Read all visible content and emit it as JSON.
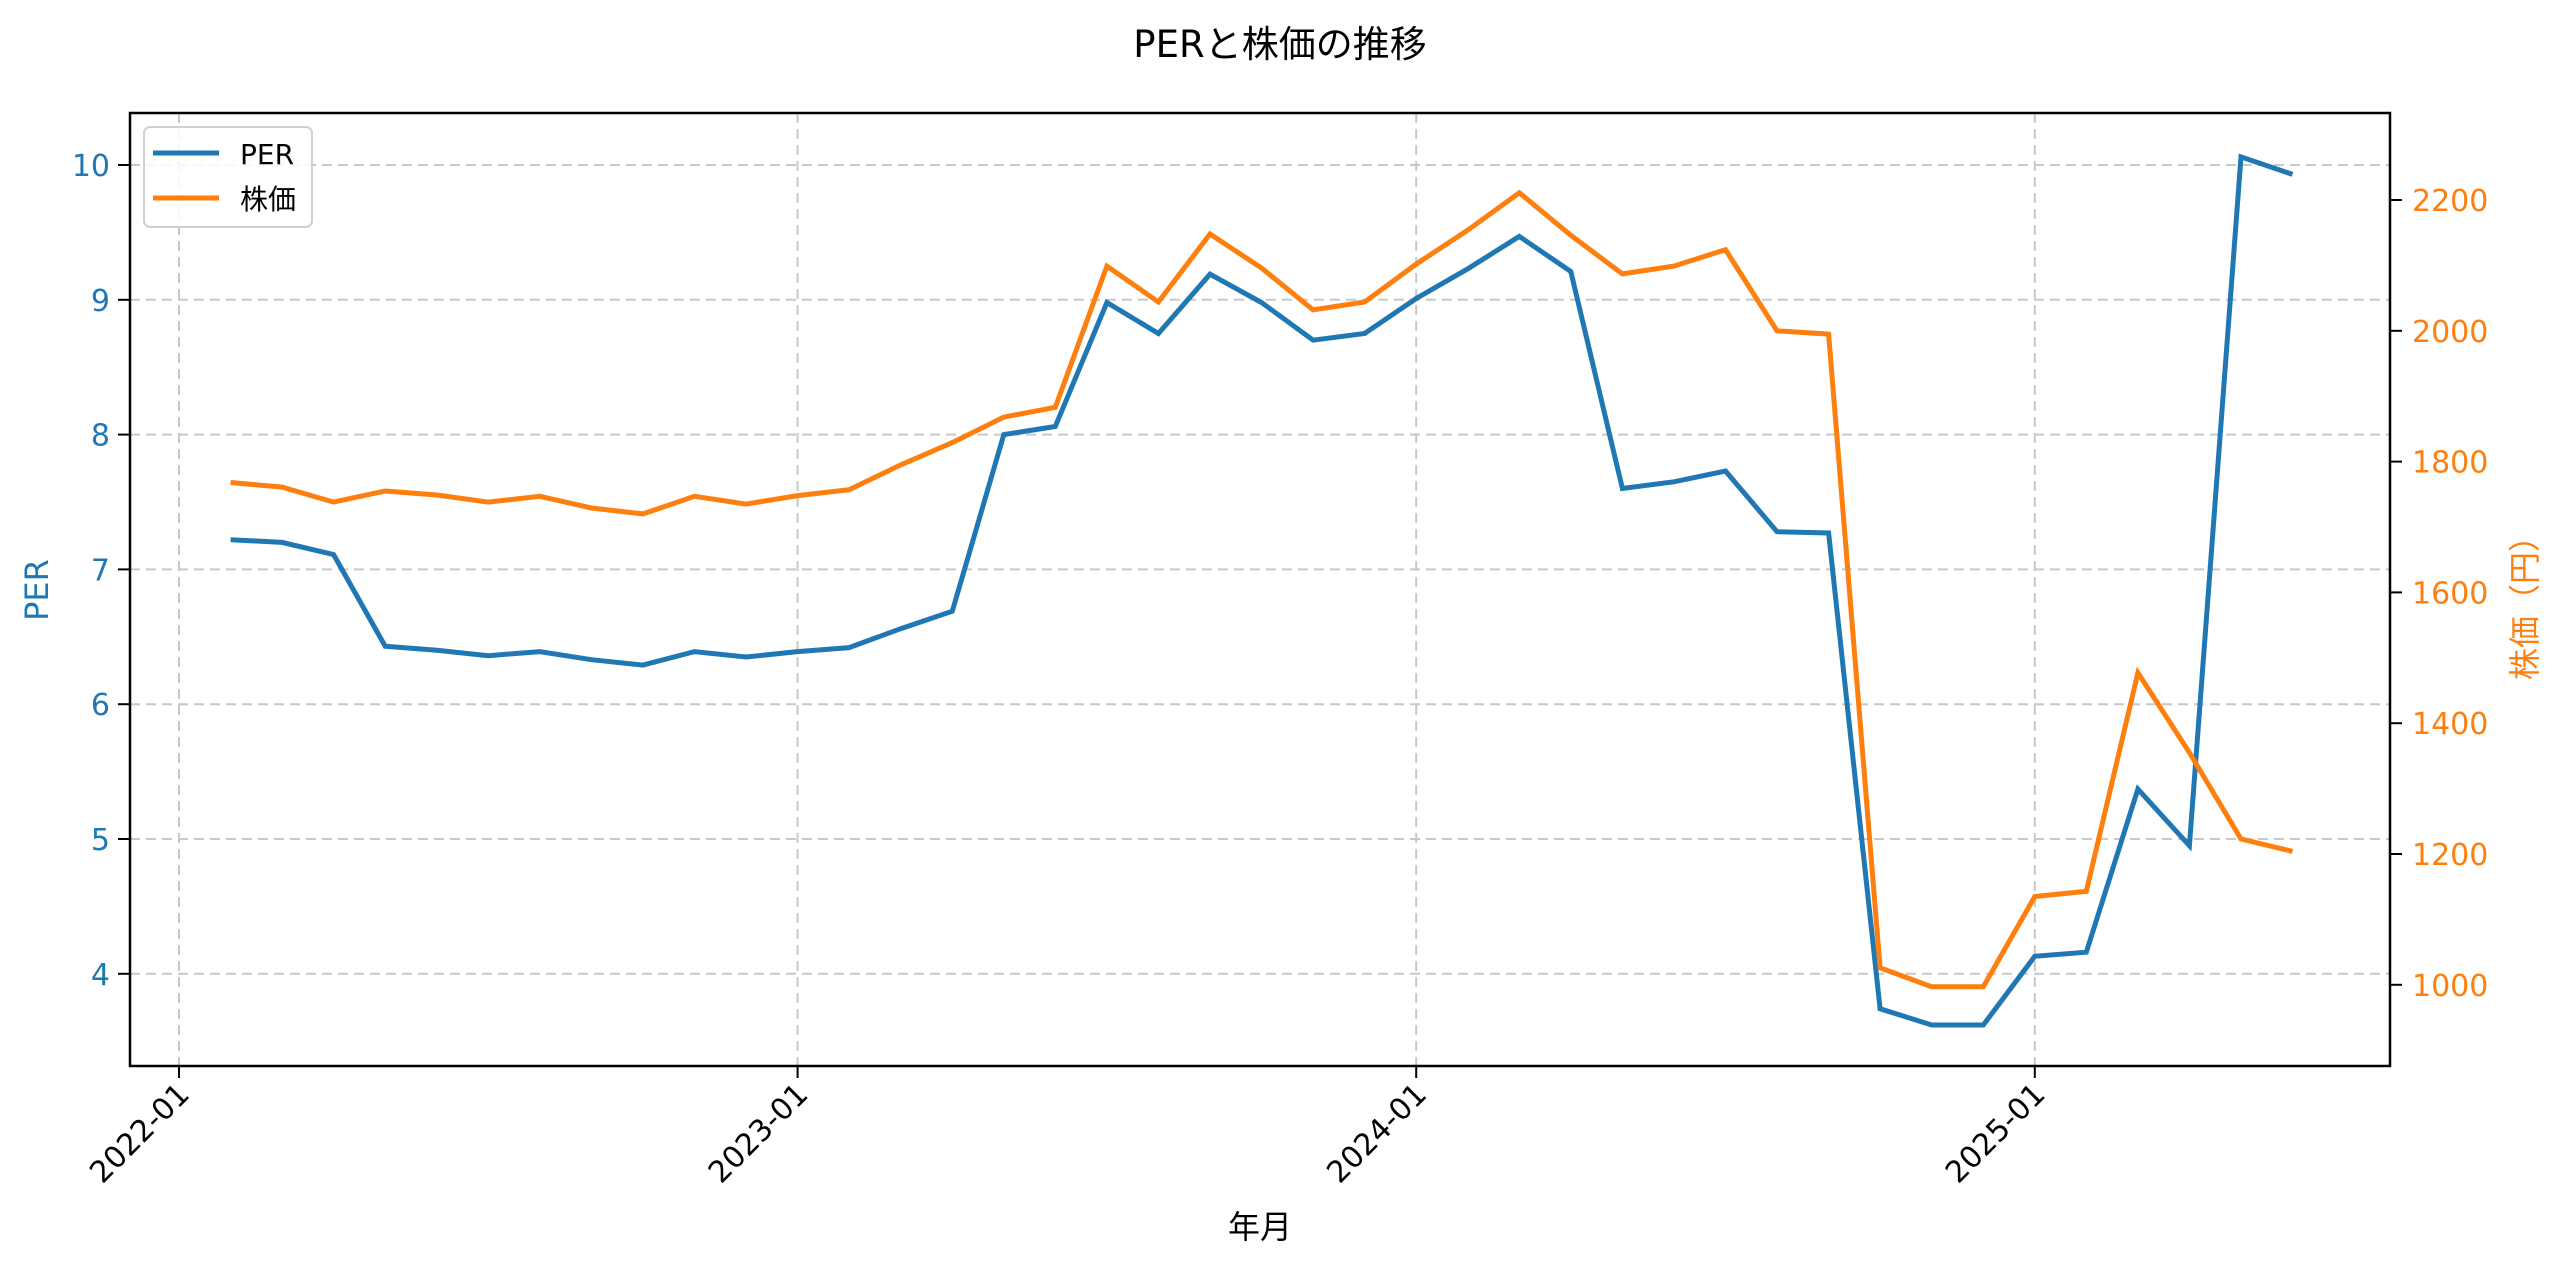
{
  "chart_data": {
    "type": "line",
    "title": "PERと株価の推移",
    "xlabel": "年月",
    "ylabel": "PER",
    "ylabel_right": "株価（円）",
    "ylim": [
      3.3,
      10.4
    ],
    "ylim_right": [
      880,
      2330
    ],
    "x_ticks": [
      "2022-01",
      "2023-01",
      "2024-01",
      "2025-01"
    ],
    "y_ticks": [
      4,
      5,
      6,
      7,
      8,
      9,
      10
    ],
    "y_ticks_right": [
      1000,
      1200,
      1400,
      1600,
      1800,
      2000,
      2200
    ],
    "grid": true,
    "legend_position": "upper left",
    "x": [
      "2022-02",
      "2022-03",
      "2022-04",
      "2022-05",
      "2022-06",
      "2022-07",
      "2022-08",
      "2022-09",
      "2022-10",
      "2022-11",
      "2022-12",
      "2023-01",
      "2023-02",
      "2023-03",
      "2023-04",
      "2023-05",
      "2023-06",
      "2023-07",
      "2023-08",
      "2023-09",
      "2023-10",
      "2023-11",
      "2023-12",
      "2024-01",
      "2024-02",
      "2024-03",
      "2024-04",
      "2024-05",
      "2024-06",
      "2024-07",
      "2024-08",
      "2024-09",
      "2024-10",
      "2024-11",
      "2024-12",
      "2025-01",
      "2025-02",
      "2025-03",
      "2025-04",
      "2025-05",
      "2025-06"
    ],
    "series": [
      {
        "name": "PER",
        "axis": "left",
        "color": "#1f77b4",
        "values": [
          7.22,
          7.2,
          7.11,
          6.43,
          6.4,
          6.36,
          6.39,
          6.33,
          6.29,
          6.39,
          6.35,
          6.39,
          6.42,
          6.56,
          6.69,
          8.0,
          8.06,
          8.98,
          8.75,
          9.19,
          8.98,
          8.7,
          8.75,
          9.01,
          9.23,
          9.47,
          9.21,
          7.6,
          7.65,
          7.73,
          7.28,
          7.27,
          3.74,
          3.62,
          3.62,
          4.13,
          4.16,
          5.37,
          4.95,
          10.06,
          9.93
        ]
      },
      {
        "name": "株価",
        "axis": "right",
        "color": "#ff7f0e",
        "values": [
          1768,
          1761,
          1738,
          1755,
          1749,
          1738,
          1747,
          1729,
          1720,
          1747,
          1735,
          1748,
          1757,
          1795,
          1829,
          1868,
          1883,
          2099,
          2044,
          2148,
          2096,
          2032,
          2044,
          2102,
          2154,
          2211,
          2146,
          2087,
          2099,
          2124,
          2000,
          1995,
          1026,
          997,
          997,
          1135,
          1143,
          1477,
          1355,
          1223,
          1204
        ]
      }
    ]
  },
  "legend": {
    "items": [
      {
        "label": "PER",
        "color": "#1f77b4"
      },
      {
        "label": "株価",
        "color": "#ff7f0e"
      }
    ]
  },
  "colors": {
    "left_axis": "#1f77b4",
    "right_axis": "#ff7f0e",
    "grid": "#c8c8c8"
  }
}
